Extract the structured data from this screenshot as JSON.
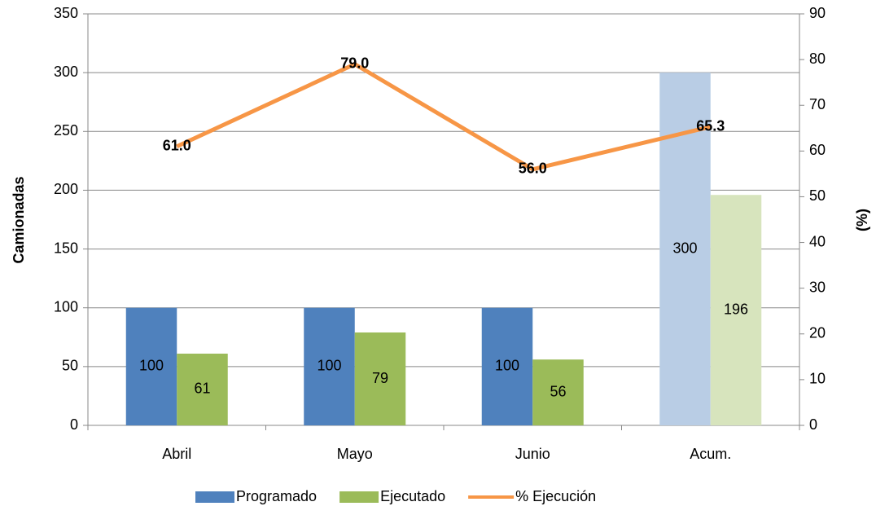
{
  "chart_data": {
    "type": "bar",
    "categories": [
      "Abril",
      "Mayo",
      "Junio",
      "Acum."
    ],
    "y_label": "Camionadas",
    "y2_label": "(%)",
    "ylim": [
      0,
      350
    ],
    "yticks": [
      0,
      50,
      100,
      150,
      200,
      250,
      300,
      350
    ],
    "y2lim": [
      0,
      90
    ],
    "y2ticks": [
      0,
      10,
      20,
      30,
      40,
      50,
      60,
      70,
      80,
      90
    ],
    "grid": true,
    "legend": "bottom",
    "series": [
      {
        "name": "Programado",
        "type": "bar",
        "color": "#4f81bd",
        "colors": [
          "#4f81bd",
          "#4f81bd",
          "#4f81bd",
          "#b9cde5"
        ],
        "values": [
          100,
          100,
          100,
          300
        ]
      },
      {
        "name": "Ejecutado",
        "type": "bar",
        "color": "#9bbb59",
        "colors": [
          "#9bbb59",
          "#9bbb59",
          "#9bbb59",
          "#d7e4bd"
        ],
        "values": [
          61,
          79,
          56,
          196
        ]
      },
      {
        "name": "% Ejecución",
        "type": "line",
        "axis": "y2",
        "color": "#f79646",
        "values": [
          61,
          79,
          56,
          65.3
        ],
        "value_labels": [
          "61.0",
          "79.0",
          "56.0",
          "65.3"
        ]
      }
    ]
  }
}
